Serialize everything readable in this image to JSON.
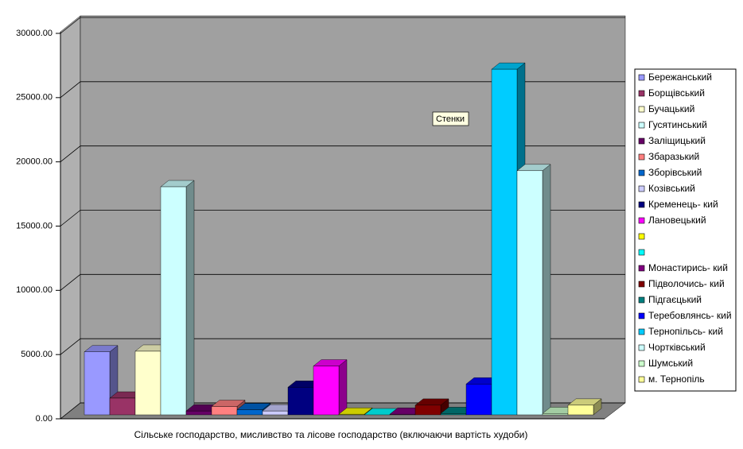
{
  "chart_data": {
    "type": "bar3d",
    "x_label": "Сільське господарство, мисливство та лісове господарство (включаючи вартість худоби)",
    "annotation": "Стенки",
    "ylim": [
      0,
      30000
    ],
    "yticks": [
      {
        "value": 0,
        "label": "0.00"
      },
      {
        "value": 5000,
        "label": "5000.00"
      },
      {
        "value": 10000,
        "label": "10000.00"
      },
      {
        "value": 15000,
        "label": "15000.00"
      },
      {
        "value": 20000,
        "label": "20000.00"
      },
      {
        "value": 25000,
        "label": "25000.00"
      },
      {
        "value": 30000,
        "label": "30000.00"
      }
    ],
    "grid": true,
    "legend": "right",
    "series": [
      {
        "name": "Бережанський",
        "color": "#9999FF",
        "values": [
          4900
        ]
      },
      {
        "name": "Борщівський",
        "color": "#993366",
        "values": [
          1300
        ]
      },
      {
        "name": "Бучацький",
        "color": "#FFFFCC",
        "values": [
          4950
        ]
      },
      {
        "name": "Гусятинський",
        "color": "#CCFFFF",
        "values": [
          17750
        ]
      },
      {
        "name": "Заліщицький",
        "color": "#660066",
        "values": [
          300
        ]
      },
      {
        "name": "Збаразький",
        "color": "#FF8080",
        "values": [
          650
        ]
      },
      {
        "name": "Зборівський",
        "color": "#0066CC",
        "values": [
          400
        ]
      },
      {
        "name": "Козівський",
        "color": "#CCCCFF",
        "values": [
          300
        ]
      },
      {
        "name": "Кременець- кий",
        "color": "#000080",
        "values": [
          2150
        ]
      },
      {
        "name": "Лановецький",
        "color": "#FF00FF",
        "values": [
          3800
        ]
      },
      {
        "name": null,
        "color": "#FFFF00",
        "values": [
          50
        ]
      },
      {
        "name": null,
        "color": "#00FFFF",
        "values": [
          0
        ]
      },
      {
        "name": "Монастирись- кий",
        "color": "#800080",
        "values": [
          50
        ]
      },
      {
        "name": "Підволочись- кий",
        "color": "#800000",
        "values": [
          750
        ]
      },
      {
        "name": "Підгаєцький",
        "color": "#008080",
        "values": [
          100
        ]
      },
      {
        "name": "Теребовлянсь- кий",
        "color": "#0000FF",
        "values": [
          2400
        ]
      },
      {
        "name": "Тернопільсь- кий",
        "color": "#00CCFF",
        "values": [
          26900
        ]
      },
      {
        "name": "Чортківський",
        "color": "#CCFFFF",
        "values": [
          19000
        ]
      },
      {
        "name": "Шумський",
        "color": "#CCFFCC",
        "values": [
          100
        ]
      },
      {
        "name": "м. Тернопіль",
        "color": "#FFFF99",
        "values": [
          750
        ]
      }
    ]
  }
}
